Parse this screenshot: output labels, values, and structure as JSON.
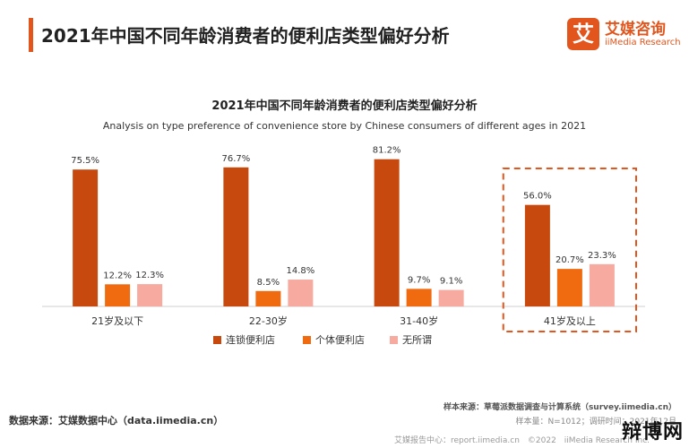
{
  "header": {
    "title": "2021年中国不同年龄消费者的便利店类型偏好分析",
    "logo_mark": "艾",
    "logo_cn": "艾媒咨询",
    "logo_en": "iiMedia Research"
  },
  "chart_data": {
    "type": "bar",
    "title": "2021年中国不同年龄消费者的便利店类型偏好分析",
    "subtitle": "Analysis on type preference of convenience store by Chinese consumers of different ages in 2021",
    "categories": [
      "21岁及以下",
      "22-30岁",
      "31-40岁",
      "41岁及以上"
    ],
    "series": [
      {
        "name": "连锁便利店",
        "values": [
          75.5,
          76.7,
          81.2,
          56.0
        ],
        "labels": [
          "75.5%",
          "76.7%",
          "81.2%",
          "56.0%"
        ],
        "color": "#c8490d"
      },
      {
        "name": "个体便利店",
        "values": [
          12.2,
          8.5,
          9.7,
          20.7
        ],
        "labels": [
          "12.2%",
          "8.5%",
          "9.7%",
          "20.7%"
        ],
        "color": "#f06a10"
      },
      {
        "name": "无所谓",
        "values": [
          12.3,
          14.8,
          9.1,
          23.3
        ],
        "labels": [
          "12.3%",
          "14.8%",
          "9.1%",
          "23.3%"
        ],
        "color": "#f6aaa0"
      }
    ],
    "ylim": [
      0,
      85
    ],
    "legend_position": "bottom",
    "highlighted_category": "41岁及以上",
    "highlight_color": "#e2551d",
    "grid": false
  },
  "footer": {
    "source_label": "数据来源：艾媒数据中心（data.iimedia.cn）",
    "sample_source": "样本来源：草莓派数据调查与计算系统（survey.iimedia.cn）",
    "sample_info": "样本量：N=1012；调研时间：2021年12月",
    "bottom_line": "艾媒报告中心：report.iimedia.cn　©2022　iiMedia Research Inc.",
    "watermark": "辩博网"
  }
}
